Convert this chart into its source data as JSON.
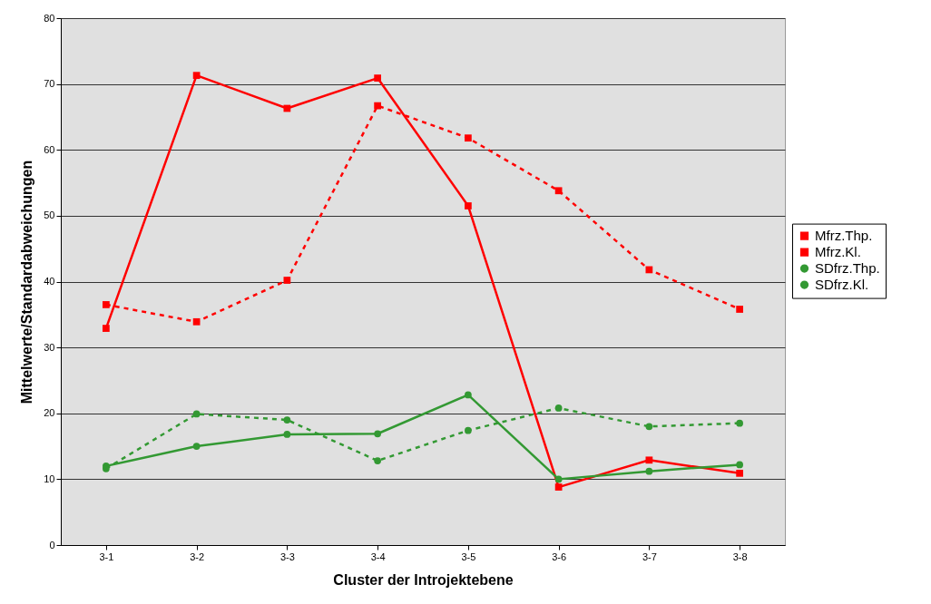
{
  "chart_data": {
    "type": "line",
    "xlabel": "Cluster der Introjektebene",
    "ylabel": "Mittelwerte/Standardabweichungen",
    "categories": [
      "3-1",
      "3-2",
      "3-3",
      "3-4",
      "3-5",
      "3-6",
      "3-7",
      "3-8"
    ],
    "series": [
      {
        "name": "Mfrz.Thp.",
        "color": "#ff0000",
        "marker": "square",
        "line_style": "solid",
        "values": [
          32.9,
          71.3,
          66.3,
          70.9,
          51.5,
          8.8,
          12.9,
          10.9
        ]
      },
      {
        "name": "Mfrz.Kl.",
        "color": "#ff0000",
        "marker": "square",
        "line_style": "dashed",
        "values": [
          36.5,
          33.9,
          40.2,
          66.7,
          61.8,
          53.8,
          41.8,
          35.8
        ]
      },
      {
        "name": "SDfrz.Thp.",
        "color": "#339933",
        "marker": "circle",
        "line_style": "solid",
        "values": [
          12.0,
          15.0,
          16.8,
          16.9,
          22.8,
          10.0,
          11.2,
          12.2
        ]
      },
      {
        "name": "SDfrz.Kl.",
        "color": "#339933",
        "marker": "circle",
        "line_style": "dashed",
        "values": [
          11.6,
          19.9,
          19.0,
          12.8,
          17.4,
          20.8,
          18.0,
          18.5
        ]
      }
    ],
    "ylim": [
      0,
      80
    ],
    "yticks": [
      0,
      10,
      20,
      30,
      40,
      50,
      60,
      70,
      80
    ],
    "grid": "y",
    "legend": "right"
  }
}
